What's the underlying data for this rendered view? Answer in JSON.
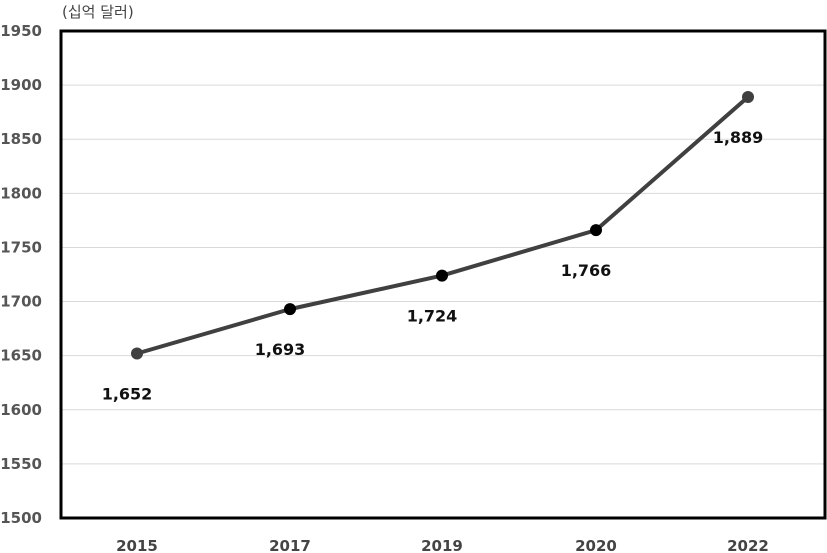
{
  "chart_data": {
    "type": "line",
    "unit_label": "(십억 달러)",
    "categories": [
      "2015",
      "2017",
      "2019",
      "2020",
      "2022"
    ],
    "series": [
      {
        "values": [
          1652,
          1693,
          1724,
          1766,
          1889
        ],
        "data_labels": [
          "1,652",
          "1,693",
          "1,724",
          "1,766",
          "1,889"
        ],
        "label_position": [
          "below",
          "below",
          "below",
          "below",
          "below"
        ]
      }
    ],
    "ylim": [
      1500,
      1950
    ],
    "yticks": [
      1500,
      1550,
      1600,
      1650,
      1700,
      1750,
      1800,
      1850,
      1900,
      1950
    ],
    "grid": true,
    "legend": "none",
    "colors": {
      "line": "#404040",
      "marker_first_last": "#404040",
      "marker_mid": "#000000",
      "grid": "#d9d9d9",
      "frame": "#000000"
    }
  }
}
